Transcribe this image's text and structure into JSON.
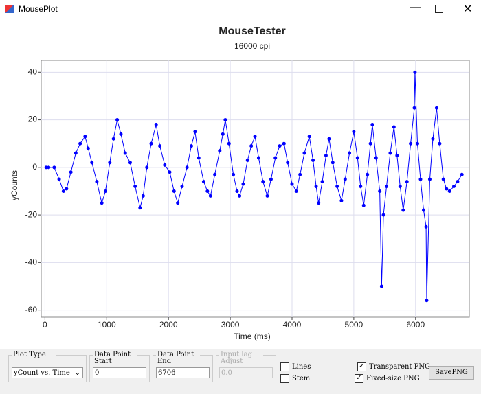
{
  "window": {
    "title": "MousePlot"
  },
  "chart_data": {
    "type": "scatter",
    "title": "MouseTester",
    "subtitle": "16000 cpi",
    "x_label": "Time (ms)",
    "y_label": "yCounts",
    "xlim": [
      -60,
      6870
    ],
    "ylim": [
      -63,
      45
    ],
    "xticks": [
      0,
      1000,
      2000,
      3000,
      4000,
      5000,
      6000
    ],
    "yticks": [
      -60,
      -40,
      -20,
      0,
      20,
      40
    ],
    "grid": true,
    "line": true,
    "series": [
      {
        "color": "#0000ff",
        "x": [
          20,
          60,
          150,
          230,
          300,
          350,
          420,
          500,
          570,
          650,
          700,
          760,
          840,
          920,
          980,
          1050,
          1110,
          1170,
          1230,
          1300,
          1380,
          1460,
          1540,
          1590,
          1650,
          1720,
          1800,
          1860,
          1940,
          2020,
          2090,
          2150,
          2220,
          2300,
          2370,
          2430,
          2490,
          2570,
          2630,
          2680,
          2750,
          2830,
          2880,
          2920,
          2980,
          3050,
          3110,
          3150,
          3210,
          3280,
          3340,
          3400,
          3460,
          3530,
          3600,
          3660,
          3730,
          3800,
          3870,
          3930,
          4000,
          4070,
          4130,
          4200,
          4280,
          4340,
          4390,
          4430,
          4490,
          4550,
          4600,
          4660,
          4730,
          4800,
          4860,
          4930,
          5000,
          5060,
          5110,
          5160,
          5220,
          5270,
          5300,
          5360,
          5420,
          5450,
          5480,
          5530,
          5590,
          5650,
          5700,
          5750,
          5800,
          5860,
          5920,
          5980,
          5990,
          6030,
          6080,
          6130,
          6170,
          6180,
          6230,
          6280,
          6340,
          6390,
          6450,
          6500,
          6550,
          6620,
          6680,
          6750
        ],
        "values": [
          0,
          0,
          0,
          -5,
          -10,
          -9,
          -2,
          6,
          10,
          13,
          8,
          2,
          -6,
          -15,
          -10,
          2,
          12,
          20,
          14,
          6,
          2,
          -8,
          -17,
          -12,
          0,
          10,
          18,
          9,
          1,
          -2,
          -10,
          -15,
          -8,
          0,
          9,
          15,
          4,
          -6,
          -10,
          -12,
          -3,
          7,
          14,
          20,
          10,
          -3,
          -10,
          -12,
          -7,
          3,
          9,
          13,
          4,
          -6,
          -12,
          -5,
          4,
          9,
          10,
          2,
          -7,
          -10,
          -3,
          6,
          13,
          3,
          -8,
          -15,
          -6,
          5,
          12,
          2,
          -8,
          -14,
          -5,
          6,
          15,
          4,
          -8,
          -16,
          -3,
          10,
          18,
          4,
          -10,
          -50,
          -20,
          -8,
          6,
          17,
          5,
          -8,
          -18,
          -6,
          10,
          25,
          40,
          10,
          -5,
          -18,
          -25,
          -56,
          -5,
          12,
          25,
          10,
          -5,
          -9,
          -10,
          -8,
          -6,
          -3
        ]
      }
    ]
  },
  "controls": {
    "plot_type": {
      "label": "Plot Type",
      "value": "yCount vs. Time"
    },
    "start": {
      "label": "Data Point Start",
      "value": "0"
    },
    "end": {
      "label": "Data Point End",
      "value": "6706"
    },
    "lag": {
      "label": "Input lag Adjust",
      "value": "0.0"
    },
    "lines": {
      "label": "Lines",
      "checked": false
    },
    "stem": {
      "label": "Stem",
      "checked": false
    },
    "transparent": {
      "label": "Transparent PNG",
      "checked": true
    },
    "fixed": {
      "label": "Fixed-size PNG",
      "checked": true
    },
    "save": {
      "label": "SavePNG"
    }
  }
}
